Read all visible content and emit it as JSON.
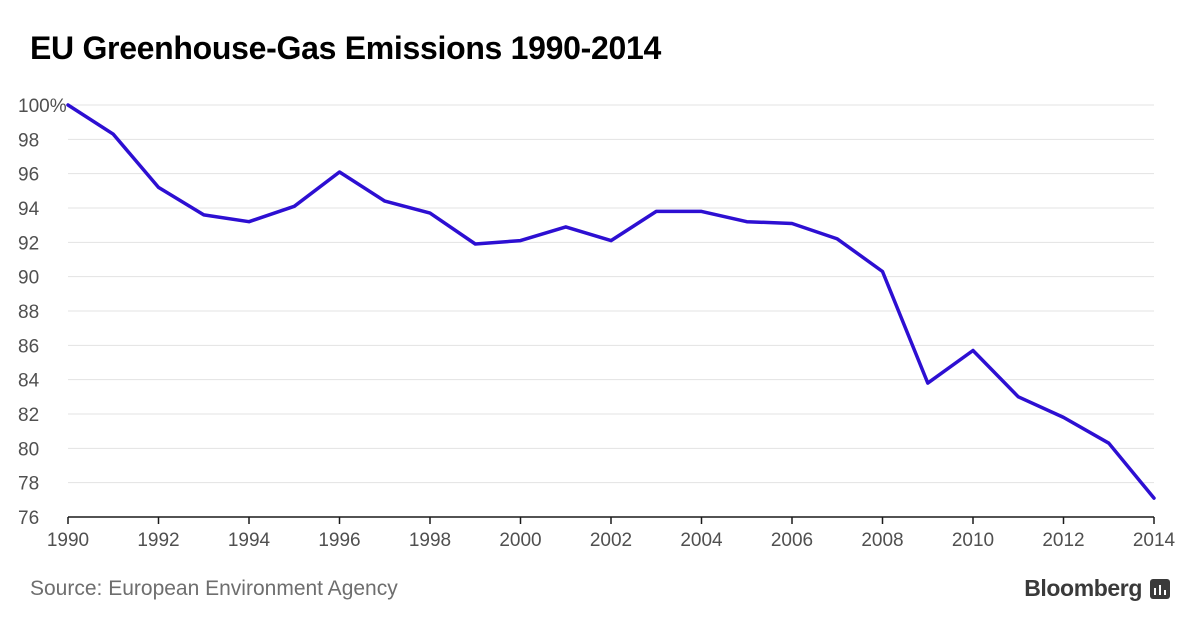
{
  "title": "EU Greenhouse-Gas Emissions 1990-2014",
  "source": "Source: European Environment Agency",
  "brand": "Bloomberg",
  "brand_icon": "bloomberg-chart-icon",
  "colors": {
    "line": "#2d0fd2",
    "grid": "#e3e3e3",
    "axis": "#1a1a1a",
    "tick_text": "#505050",
    "source_text": "#6e6e6e"
  },
  "chart_data": {
    "type": "line",
    "title": "EU Greenhouse-Gas Emissions 1990-2014",
    "xlabel": "",
    "ylabel": "",
    "xlim": [
      1990,
      2014
    ],
    "ylim": [
      76,
      100
    ],
    "grid": true,
    "y_ticks": [
      76,
      78,
      80,
      82,
      84,
      86,
      88,
      90,
      92,
      94,
      96,
      98,
      100
    ],
    "y_tick_labels": [
      "76",
      "78",
      "80",
      "82",
      "84",
      "86",
      "88",
      "90",
      "92",
      "94",
      "96",
      "98",
      "100%"
    ],
    "x_ticks": [
      1990,
      1992,
      1994,
      1996,
      1998,
      2000,
      2002,
      2004,
      2006,
      2008,
      2010,
      2012,
      2014
    ],
    "x_tick_labels": [
      "1990",
      "1992",
      "1994",
      "1996",
      "1998",
      "2000",
      "2002",
      "2004",
      "2006",
      "2008",
      "2010",
      "2012",
      "2014"
    ],
    "series": [
      {
        "x": [
          1990,
          1991,
          1992,
          1993,
          1994,
          1995,
          1996,
          1997,
          1998,
          1999,
          2000,
          2001,
          2002,
          2003,
          2004,
          2005,
          2006,
          2007,
          2008,
          2009,
          2010,
          2011,
          2012,
          2013,
          2014
        ],
        "values": [
          100,
          98.3,
          95.2,
          93.6,
          93.2,
          94.1,
          96.1,
          94.4,
          93.7,
          91.9,
          92.1,
          92.9,
          92.1,
          93.8,
          93.8,
          93.2,
          93.1,
          92.2,
          90.3,
          83.8,
          85.7,
          83.0,
          81.8,
          80.3,
          77.1
        ]
      }
    ]
  }
}
